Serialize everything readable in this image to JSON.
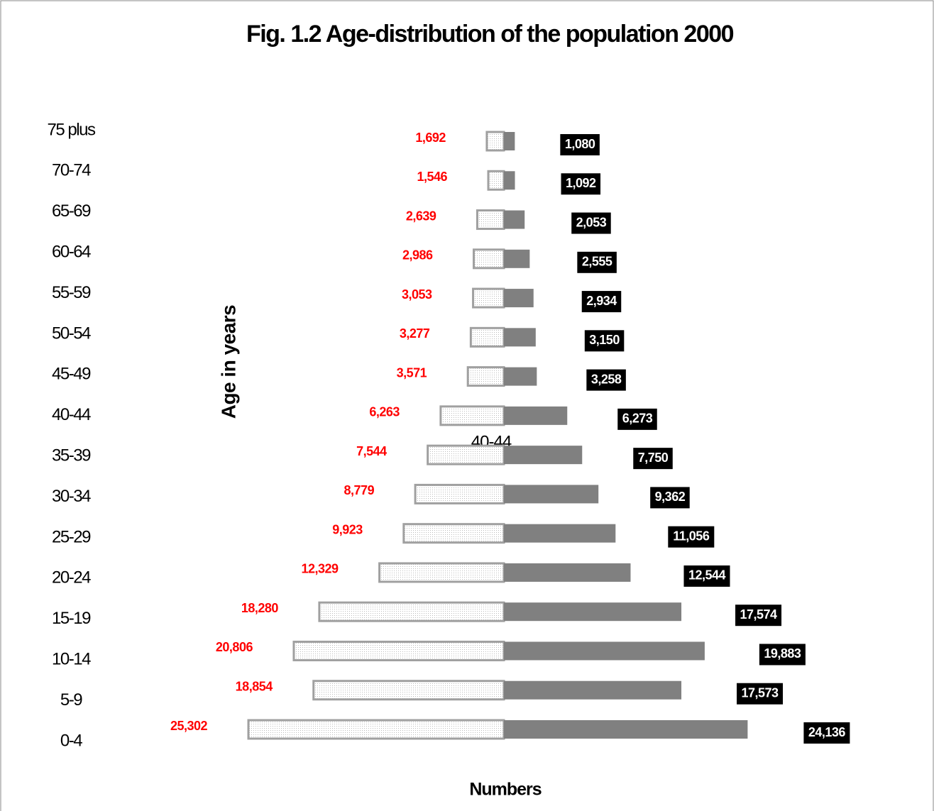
{
  "chart_data": {
    "type": "bar",
    "title": "Fig. 1.2 Age-distribution of the population 2000",
    "y_label": "Age in years",
    "x_label": "Numbers",
    "annotation": "40-44",
    "categories": [
      "75 plus",
      "70-74",
      "65-69",
      "60-64",
      "55-59",
      "50-54",
      "45-49",
      "40-44",
      "35-39",
      "30-34",
      "25-29",
      "20-24",
      "15-19",
      "10-14",
      "5-9",
      "0-4"
    ],
    "series": [
      {
        "color": "#a0a0a0",
        "label_color": "#ff0000",
        "values": [
          1692,
          1546,
          2639,
          2986,
          3053,
          3277,
          3571,
          6263,
          7544,
          8779,
          9923,
          12329,
          18280,
          20806,
          18854,
          25302
        ],
        "value_labels": [
          "1,692",
          "1,546",
          "2,639",
          "2,986",
          "3,053",
          "3,277",
          "3,571",
          "6,263",
          "7,544",
          "8,779",
          "9,923",
          "12,329",
          "18,280",
          "20,806",
          "18,854",
          "25,302"
        ]
      },
      {
        "color": "#808080",
        "label_color": "#000000",
        "values": [
          1080,
          1092,
          2053,
          2555,
          2934,
          3150,
          3258,
          6273,
          7750,
          9362,
          11056,
          12544,
          17574,
          19883,
          17573,
          24136
        ],
        "value_labels": [
          "1,080",
          "1,092",
          "2,053",
          "2,555",
          "2,934",
          "3,150",
          "3,258",
          "6,273",
          "7,750",
          "9,362",
          "11,056",
          "12,544",
          "17,574",
          "19,883",
          "17,573",
          "24,136"
        ]
      }
    ]
  }
}
